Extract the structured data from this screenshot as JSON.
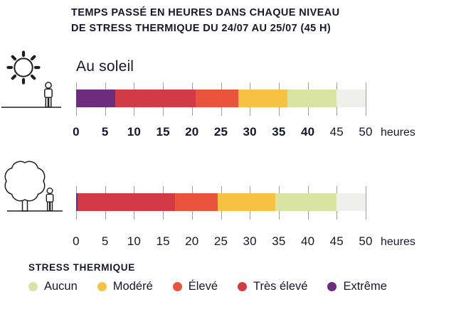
{
  "title": {
    "line1": "TEMPS PASSÉ EN HEURES DANS CHAQUE NIVEAU",
    "line2": "DE STRESS THERMIQUE DU 24/07 AU 25/07 (45 H)"
  },
  "axis": {
    "unit": "heures",
    "ticks": [
      "0",
      "5",
      "10",
      "15",
      "20",
      "25",
      "30",
      "35",
      "40",
      "45",
      "50"
    ]
  },
  "colors": {
    "Aucun": "#D9E3A2",
    "Modéré": "#F7C243",
    "Élevé": "#EA533E",
    "Très élevé": "#D23A45",
    "Extrême": "#6E2C7E",
    "no_data": "#EFEFEC",
    "grid": "#9E9E9E",
    "text": "#17172B"
  },
  "legend": {
    "title": "STRESS THERMIQUE",
    "items": [
      {
        "label": "Aucun",
        "color": "#D9E3A2"
      },
      {
        "label": "Modéré",
        "color": "#F7C243"
      },
      {
        "label": "Élevé",
        "color": "#EA533E"
      },
      {
        "label": "Très élevé",
        "color": "#D23A45"
      },
      {
        "label": "Extrême",
        "color": "#6E2C7E"
      }
    ]
  },
  "chart_data": {
    "type": "bar",
    "orientation": "horizontal-stacked",
    "title": "TEMPS PASSÉ EN HEURES DANS CHAQUE NIVEAU DE STRESS THERMIQUE DU 24/07 AU 25/07 (45 H)",
    "xlabel": "heures",
    "xlim": [
      0,
      50
    ],
    "x_ticks": [
      0,
      5,
      10,
      15,
      20,
      25,
      30,
      35,
      40,
      45,
      50
    ],
    "total_window_hours": 45,
    "legend_position": "bottom",
    "levels": [
      "Aucun",
      "Modéré",
      "Élevé",
      "Très élevé",
      "Extrême"
    ],
    "series": [
      {
        "name": "Au soleil",
        "icon": "sun-person",
        "segments": [
          {
            "level": "Extrême",
            "hours": 6.8
          },
          {
            "level": "Très élevé",
            "hours": 13.9
          },
          {
            "level": "Élevé",
            "hours": 7.3
          },
          {
            "level": "Modéré",
            "hours": 8.5
          },
          {
            "level": "Aucun",
            "hours": 8.5
          }
        ],
        "no_data_hours": 5,
        "axis_bold_ticks": [
          0,
          5,
          10,
          15,
          20,
          25,
          30,
          35,
          40
        ]
      },
      {
        "name": "",
        "icon": "tree-person",
        "segments": [
          {
            "level": "Extrême",
            "hours": 0.3
          },
          {
            "level": "Très élevé",
            "hours": 16.8
          },
          {
            "level": "Élevé",
            "hours": 7.4
          },
          {
            "level": "Modéré",
            "hours": 9.9
          },
          {
            "level": "Aucun",
            "hours": 10.6
          }
        ],
        "no_data_hours": 5,
        "axis_bold_ticks": []
      }
    ]
  }
}
